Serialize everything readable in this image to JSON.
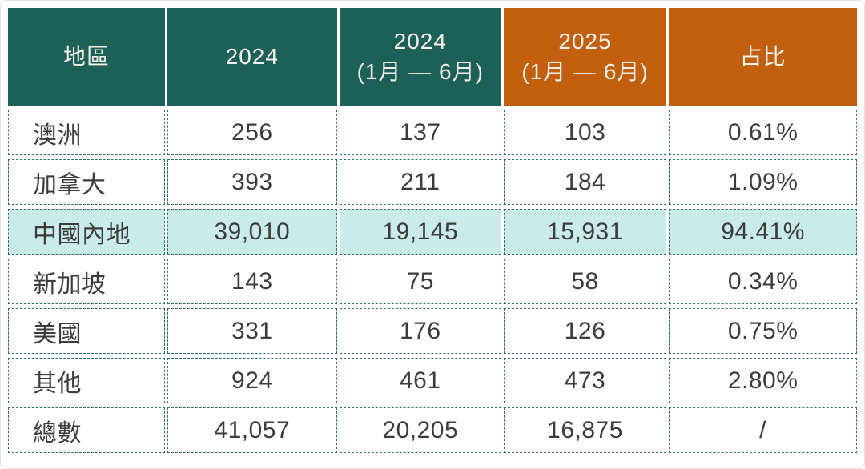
{
  "colors": {
    "teal": "#1d6058",
    "orange": "#c3600f",
    "highlight-bg": "#c9eceb",
    "border": "#2e6e64",
    "text": "#3c3c3c",
    "header-text": "#f4f1ea",
    "page-bg": "#ffffff",
    "frame": "#e2e2e2"
  },
  "table": {
    "headers": [
      {
        "label": "地區",
        "style": "teal"
      },
      {
        "label": "2024",
        "style": "teal"
      },
      {
        "label": "2024\n(1月 — 6月)",
        "style": "teal"
      },
      {
        "label": "2025\n(1月 — 6月)",
        "style": "orange"
      },
      {
        "label": "占比",
        "style": "orange"
      }
    ],
    "rows": [
      {
        "region": "澳洲",
        "full_2024": "256",
        "h1_2024": "137",
        "h1_2025": "103",
        "share": "0.61%",
        "highlighted": false
      },
      {
        "region": "加拿大",
        "full_2024": "393",
        "h1_2024": "211",
        "h1_2025": "184",
        "share": "1.09%",
        "highlighted": false
      },
      {
        "region": "中國內地",
        "full_2024": "39,010",
        "h1_2024": "19,145",
        "h1_2025": "15,931",
        "share": "94.41%",
        "highlighted": true
      },
      {
        "region": "新加坡",
        "full_2024": "143",
        "h1_2024": "75",
        "h1_2025": "58",
        "share": "0.34%",
        "highlighted": false
      },
      {
        "region": "美國",
        "full_2024": "331",
        "h1_2024": "176",
        "h1_2025": "126",
        "share": "0.75%",
        "highlighted": false
      },
      {
        "region": "其他",
        "full_2024": "924",
        "h1_2024": "461",
        "h1_2025": "473",
        "share": "2.80%",
        "highlighted": false
      },
      {
        "region": "總數",
        "full_2024": "41,057",
        "h1_2024": "20,205",
        "h1_2025": "16,875",
        "share": "/",
        "highlighted": false
      }
    ]
  }
}
